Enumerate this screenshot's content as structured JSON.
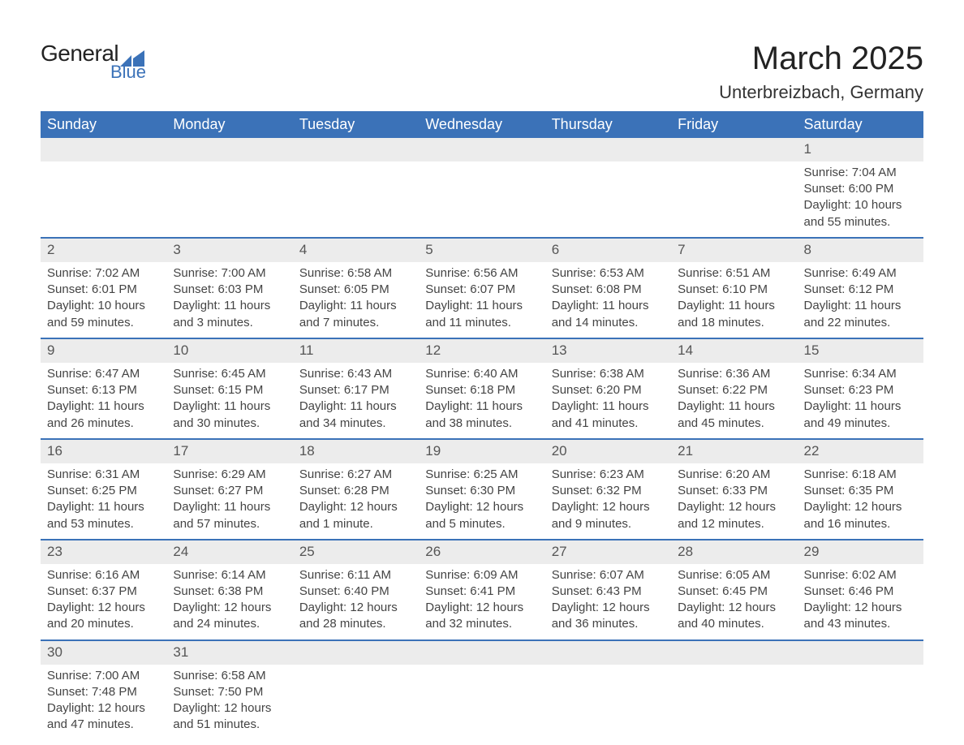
{
  "logo": {
    "general": "General",
    "blue": "Blue"
  },
  "header": {
    "month_title": "March 2025",
    "location": "Unterbreizbach, Germany"
  },
  "colors": {
    "header_bg": "#3b72b8",
    "header_text": "#ffffff",
    "daynum_bg": "#ececec",
    "row_border": "#3b72b8"
  },
  "day_labels": [
    "Sunday",
    "Monday",
    "Tuesday",
    "Wednesday",
    "Thursday",
    "Friday",
    "Saturday"
  ],
  "weeks": [
    [
      null,
      null,
      null,
      null,
      null,
      null,
      {
        "n": "1",
        "sr": "Sunrise: 7:04 AM",
        "ss": "Sunset: 6:00 PM",
        "d1": "Daylight: 10 hours",
        "d2": "and 55 minutes."
      }
    ],
    [
      {
        "n": "2",
        "sr": "Sunrise: 7:02 AM",
        "ss": "Sunset: 6:01 PM",
        "d1": "Daylight: 10 hours",
        "d2": "and 59 minutes."
      },
      {
        "n": "3",
        "sr": "Sunrise: 7:00 AM",
        "ss": "Sunset: 6:03 PM",
        "d1": "Daylight: 11 hours",
        "d2": "and 3 minutes."
      },
      {
        "n": "4",
        "sr": "Sunrise: 6:58 AM",
        "ss": "Sunset: 6:05 PM",
        "d1": "Daylight: 11 hours",
        "d2": "and 7 minutes."
      },
      {
        "n": "5",
        "sr": "Sunrise: 6:56 AM",
        "ss": "Sunset: 6:07 PM",
        "d1": "Daylight: 11 hours",
        "d2": "and 11 minutes."
      },
      {
        "n": "6",
        "sr": "Sunrise: 6:53 AM",
        "ss": "Sunset: 6:08 PM",
        "d1": "Daylight: 11 hours",
        "d2": "and 14 minutes."
      },
      {
        "n": "7",
        "sr": "Sunrise: 6:51 AM",
        "ss": "Sunset: 6:10 PM",
        "d1": "Daylight: 11 hours",
        "d2": "and 18 minutes."
      },
      {
        "n": "8",
        "sr": "Sunrise: 6:49 AM",
        "ss": "Sunset: 6:12 PM",
        "d1": "Daylight: 11 hours",
        "d2": "and 22 minutes."
      }
    ],
    [
      {
        "n": "9",
        "sr": "Sunrise: 6:47 AM",
        "ss": "Sunset: 6:13 PM",
        "d1": "Daylight: 11 hours",
        "d2": "and 26 minutes."
      },
      {
        "n": "10",
        "sr": "Sunrise: 6:45 AM",
        "ss": "Sunset: 6:15 PM",
        "d1": "Daylight: 11 hours",
        "d2": "and 30 minutes."
      },
      {
        "n": "11",
        "sr": "Sunrise: 6:43 AM",
        "ss": "Sunset: 6:17 PM",
        "d1": "Daylight: 11 hours",
        "d2": "and 34 minutes."
      },
      {
        "n": "12",
        "sr": "Sunrise: 6:40 AM",
        "ss": "Sunset: 6:18 PM",
        "d1": "Daylight: 11 hours",
        "d2": "and 38 minutes."
      },
      {
        "n": "13",
        "sr": "Sunrise: 6:38 AM",
        "ss": "Sunset: 6:20 PM",
        "d1": "Daylight: 11 hours",
        "d2": "and 41 minutes."
      },
      {
        "n": "14",
        "sr": "Sunrise: 6:36 AM",
        "ss": "Sunset: 6:22 PM",
        "d1": "Daylight: 11 hours",
        "d2": "and 45 minutes."
      },
      {
        "n": "15",
        "sr": "Sunrise: 6:34 AM",
        "ss": "Sunset: 6:23 PM",
        "d1": "Daylight: 11 hours",
        "d2": "and 49 minutes."
      }
    ],
    [
      {
        "n": "16",
        "sr": "Sunrise: 6:31 AM",
        "ss": "Sunset: 6:25 PM",
        "d1": "Daylight: 11 hours",
        "d2": "and 53 minutes."
      },
      {
        "n": "17",
        "sr": "Sunrise: 6:29 AM",
        "ss": "Sunset: 6:27 PM",
        "d1": "Daylight: 11 hours",
        "d2": "and 57 minutes."
      },
      {
        "n": "18",
        "sr": "Sunrise: 6:27 AM",
        "ss": "Sunset: 6:28 PM",
        "d1": "Daylight: 12 hours",
        "d2": "and 1 minute."
      },
      {
        "n": "19",
        "sr": "Sunrise: 6:25 AM",
        "ss": "Sunset: 6:30 PM",
        "d1": "Daylight: 12 hours",
        "d2": "and 5 minutes."
      },
      {
        "n": "20",
        "sr": "Sunrise: 6:23 AM",
        "ss": "Sunset: 6:32 PM",
        "d1": "Daylight: 12 hours",
        "d2": "and 9 minutes."
      },
      {
        "n": "21",
        "sr": "Sunrise: 6:20 AM",
        "ss": "Sunset: 6:33 PM",
        "d1": "Daylight: 12 hours",
        "d2": "and 12 minutes."
      },
      {
        "n": "22",
        "sr": "Sunrise: 6:18 AM",
        "ss": "Sunset: 6:35 PM",
        "d1": "Daylight: 12 hours",
        "d2": "and 16 minutes."
      }
    ],
    [
      {
        "n": "23",
        "sr": "Sunrise: 6:16 AM",
        "ss": "Sunset: 6:37 PM",
        "d1": "Daylight: 12 hours",
        "d2": "and 20 minutes."
      },
      {
        "n": "24",
        "sr": "Sunrise: 6:14 AM",
        "ss": "Sunset: 6:38 PM",
        "d1": "Daylight: 12 hours",
        "d2": "and 24 minutes."
      },
      {
        "n": "25",
        "sr": "Sunrise: 6:11 AM",
        "ss": "Sunset: 6:40 PM",
        "d1": "Daylight: 12 hours",
        "d2": "and 28 minutes."
      },
      {
        "n": "26",
        "sr": "Sunrise: 6:09 AM",
        "ss": "Sunset: 6:41 PM",
        "d1": "Daylight: 12 hours",
        "d2": "and 32 minutes."
      },
      {
        "n": "27",
        "sr": "Sunrise: 6:07 AM",
        "ss": "Sunset: 6:43 PM",
        "d1": "Daylight: 12 hours",
        "d2": "and 36 minutes."
      },
      {
        "n": "28",
        "sr": "Sunrise: 6:05 AM",
        "ss": "Sunset: 6:45 PM",
        "d1": "Daylight: 12 hours",
        "d2": "and 40 minutes."
      },
      {
        "n": "29",
        "sr": "Sunrise: 6:02 AM",
        "ss": "Sunset: 6:46 PM",
        "d1": "Daylight: 12 hours",
        "d2": "and 43 minutes."
      }
    ],
    [
      {
        "n": "30",
        "sr": "Sunrise: 7:00 AM",
        "ss": "Sunset: 7:48 PM",
        "d1": "Daylight: 12 hours",
        "d2": "and 47 minutes."
      },
      {
        "n": "31",
        "sr": "Sunrise: 6:58 AM",
        "ss": "Sunset: 7:50 PM",
        "d1": "Daylight: 12 hours",
        "d2": "and 51 minutes."
      },
      null,
      null,
      null,
      null,
      null
    ]
  ]
}
